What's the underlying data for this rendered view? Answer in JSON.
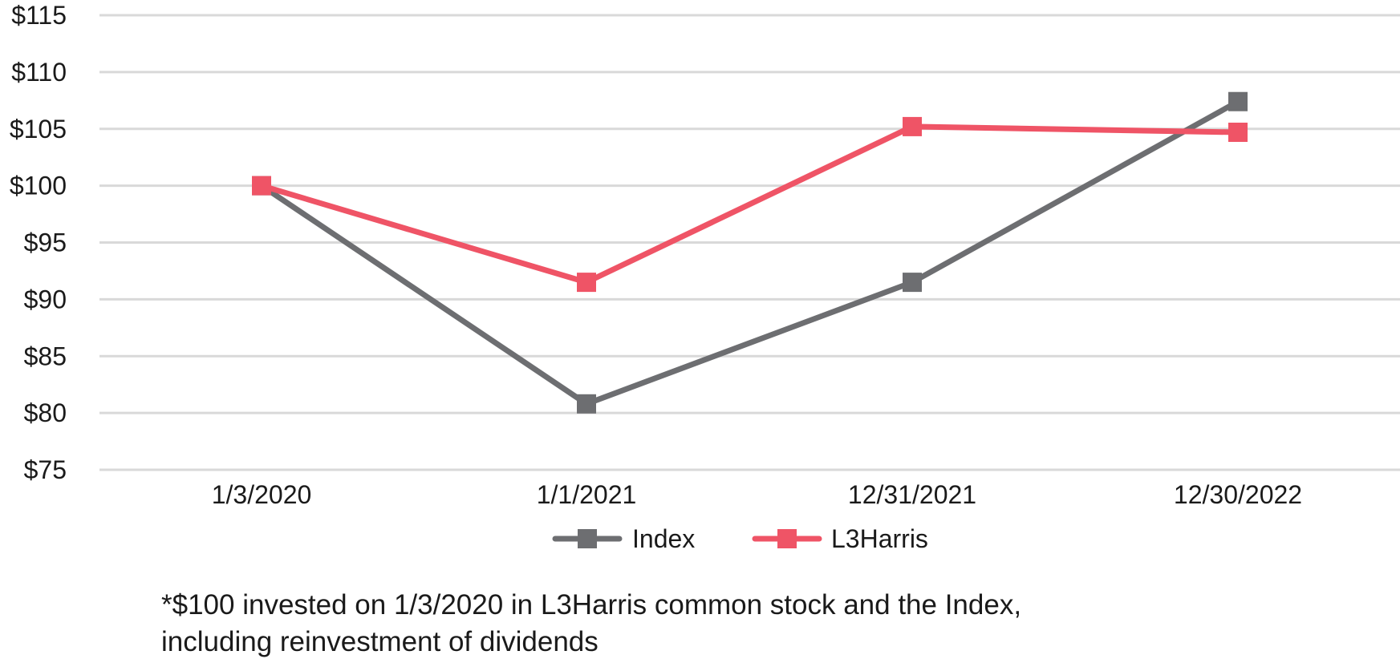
{
  "chart_data": {
    "type": "line",
    "title": "",
    "xlabel": "",
    "ylabel": "",
    "categories": [
      "1/3/2020",
      "1/1/2021",
      "12/31/2021",
      "12/30/2022"
    ],
    "series": [
      {
        "name": "Index",
        "values": [
          100,
          80.8,
          91.5,
          107.4
        ],
        "color": "#6d6e71"
      },
      {
        "name": "L3Harris",
        "values": [
          100,
          91.5,
          105.2,
          104.7
        ],
        "color": "#ef5466"
      }
    ],
    "ylim": [
      75,
      115
    ],
    "yticks": [
      75,
      80,
      85,
      90,
      95,
      100,
      105,
      110,
      115
    ],
    "ytick_labels": [
      "$75",
      "$80",
      "$85",
      "$90",
      "$95",
      "$100",
      "$105",
      "$110",
      "$115"
    ],
    "grid": true,
    "grid_color": "#d9d9d9",
    "legend_position": "bottom-center"
  },
  "footnote": {
    "line1": "*$100 invested on 1/3/2020 in L3Harris common stock and the Index,",
    "line2": "including reinvestment of dividends"
  }
}
